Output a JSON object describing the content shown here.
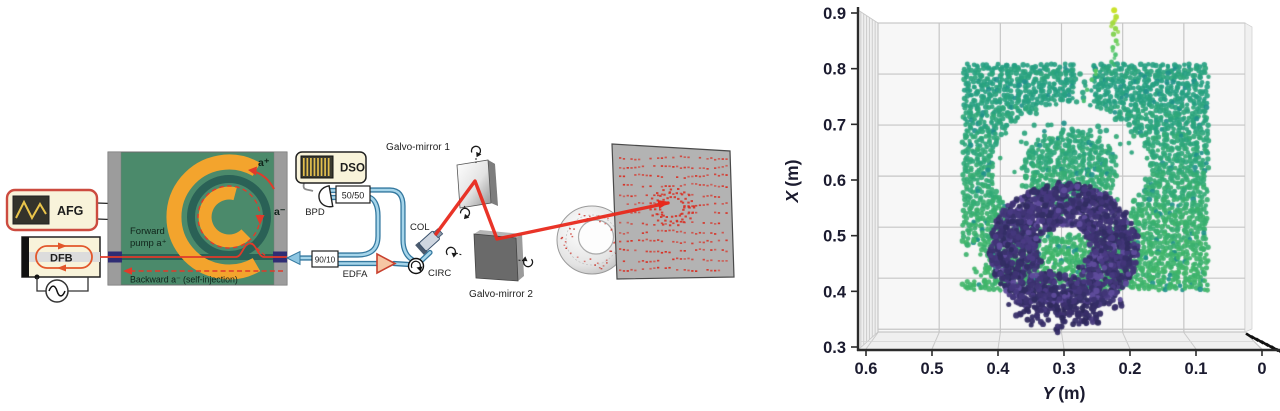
{
  "diagram": {
    "afg_label": "AFG",
    "dfb_label": "DFB",
    "dso_label": "DSO",
    "bpd_label": "BPD",
    "coupler_50_50": "50/50",
    "coupler_90_10": "90/10",
    "edfa_label": "EDFA",
    "circulator_label": "CIRC",
    "collimator_label": "COL",
    "galvo_mirror_1": "Galvo-mirror 1",
    "galvo_mirror_2": "Galvo-mirror 2",
    "forward_pump_line_1": "Forward",
    "forward_pump_line_2": "pump a⁺",
    "backward_label": "Backward a⁻ (self-injection)",
    "ccw_wave_label": "a⁺",
    "cw_wave_label": "a⁻",
    "colors": {
      "chip_green": "#4b8a6b",
      "heater_orange": "#f3a42d",
      "waveguide_teal": "#2a6156",
      "laser_red": "#e8291c",
      "fiber_blue": "#8ec6e2",
      "fiber_edge_blue": "#34789f",
      "facet_navy": "#2f2d74",
      "panel_cream": "#f8f3da",
      "accent_red_border": "#cc4b3f",
      "screen_gray": "#b3b3b3"
    }
  },
  "chart_data": {
    "type": "scatter",
    "projection": "3d",
    "title": "",
    "xlabel_var": "Y",
    "xlabel_unit": "(m)",
    "ylabel_var": "X",
    "ylabel_unit": "(m)",
    "x_axis_ticks": [
      0.6,
      0.5,
      0.4,
      0.3,
      0.2,
      0.1,
      0
    ],
    "x_axis_tick_labels": [
      "0.6",
      "0.5",
      "0.4",
      "0.3",
      "0.2",
      "0.1",
      "0"
    ],
    "y_axis_ticks": [
      0.9,
      0.8,
      0.7,
      0.6,
      0.5,
      0.4,
      0.3
    ],
    "y_axis_tick_labels": [
      "0.9",
      "0.8",
      "0.7",
      "0.6",
      "0.5",
      "0.4",
      "0.3"
    ],
    "x_range": [
      0.6,
      0
    ],
    "y_range": [
      0.3,
      0.9
    ],
    "grid": true,
    "colormap": "viridis",
    "clusters": [
      {
        "name": "target-screen",
        "shape": "rectangle",
        "y_m": [
          0.085,
          0.45
        ],
        "x_m": [
          0.405,
          0.805
        ],
        "colors": [
          "#26a082",
          "#40b569"
        ],
        "n_rows": 54,
        "n_cols": 67
      },
      {
        "name": "torus-shadow-ring",
        "shape": "annulus-gap",
        "center_y_m": 0.29,
        "center_x_m": 0.62,
        "r_inner": 0.072,
        "r_outer": 0.118
      },
      {
        "name": "right-shadow-patch",
        "shape": "rectangle-gap",
        "y_m": [
          0.42,
          0.56
        ],
        "x_m": [
          0.165,
          0.225
        ]
      },
      {
        "name": "torus-target",
        "shape": "annulus",
        "center_y_m": 0.3,
        "center_x_m": 0.475,
        "r_inner": 0.04,
        "r_outer": 0.112,
        "colors": [
          "#302c60",
          "#4c3c86"
        ],
        "n": 1700
      },
      {
        "name": "stray-points",
        "shape": "points",
        "points": [
          [
            0.228,
            0.812,
            "#3fbc70",
            2.4
          ],
          [
            0.222,
            0.825,
            "#4ac16d",
            2.4
          ],
          [
            0.226,
            0.838,
            "#59c864",
            2.5
          ],
          [
            0.221,
            0.85,
            "#6ccd5a",
            2.5
          ],
          [
            0.225,
            0.862,
            "#7fd24f",
            2.6
          ],
          [
            0.222,
            0.872,
            "#8ed645",
            2.6
          ],
          [
            0.226,
            0.882,
            "#9fda3d",
            2.7
          ],
          [
            0.221,
            0.893,
            "#b2dd2d",
            2.8
          ],
          [
            0.224,
            0.905,
            "#c7e01f",
            3.0
          ],
          [
            0.252,
            0.796,
            "#5bc963",
            2.3
          ],
          [
            0.258,
            0.78,
            "#52c56a",
            2.3
          ],
          [
            0.265,
            0.762,
            "#49c16e",
            2.2
          ],
          [
            0.27,
            0.742,
            "#42bd71",
            2.2
          ]
        ]
      }
    ]
  }
}
